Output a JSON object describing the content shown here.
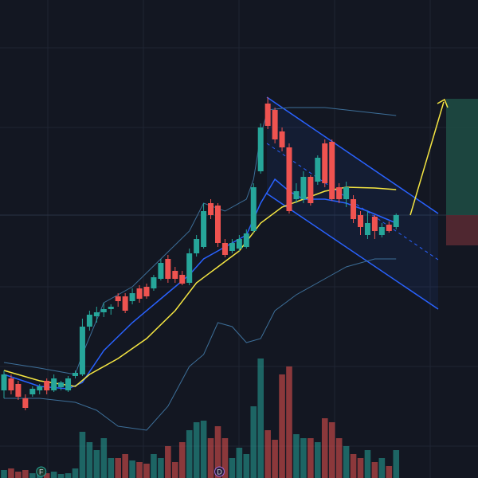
{
  "chart_data": {
    "type": "candlestick",
    "ylim": [
      0,
      600
    ],
    "y2lim": [
      0,
      600
    ],
    "up_color": "#26a69a",
    "down_color": "#ef5350",
    "open": [
      110,
      125,
      118,
      100,
      105,
      110,
      122,
      110,
      114,
      110,
      128,
      130,
      190,
      203,
      208,
      212,
      228,
      228,
      222,
      238,
      240,
      238,
      250,
      275,
      260,
      255,
      245,
      282,
      290,
      345,
      342,
      295,
      285,
      288,
      290,
      310,
      385,
      470,
      462,
      435,
      415,
      350,
      350,
      378,
      372,
      420,
      422,
      365,
      350,
      350,
      330,
      305,
      328,
      305,
      318,
      315
    ],
    "high": [
      135,
      130,
      122,
      105,
      115,
      118,
      125,
      130,
      122,
      128,
      135,
      200,
      210,
      215,
      220,
      218,
      232,
      232,
      238,
      242,
      244,
      255,
      275,
      280,
      265,
      260,
      288,
      305,
      345,
      350,
      345,
      300,
      300,
      305,
      312,
      370,
      445,
      478,
      465,
      440,
      420,
      370,
      385,
      380,
      405,
      425,
      425,
      370,
      372,
      355,
      335,
      335,
      330,
      320,
      322,
      332
    ],
    "low": [
      100,
      105,
      98,
      85,
      102,
      105,
      105,
      108,
      110,
      108,
      125,
      128,
      185,
      195,
      202,
      205,
      215,
      207,
      218,
      220,
      225,
      235,
      248,
      245,
      245,
      242,
      242,
      278,
      288,
      325,
      290,
      277,
      282,
      285,
      288,
      308,
      382,
      438,
      420,
      410,
      332,
      345,
      345,
      342,
      368,
      365,
      348,
      345,
      340,
      320,
      305,
      300,
      300,
      302,
      308,
      312
    ],
    "close": [
      130,
      110,
      102,
      88,
      112,
      115,
      110,
      125,
      120,
      125,
      132,
      190,
      205,
      208,
      212,
      215,
      222,
      210,
      232,
      225,
      228,
      252,
      270,
      250,
      250,
      244,
      282,
      300,
      335,
      330,
      295,
      280,
      295,
      300,
      307,
      365,
      440,
      442,
      425,
      415,
      335,
      360,
      378,
      345,
      402,
      370,
      350,
      350,
      365,
      325,
      315,
      320,
      310,
      315,
      310,
      330
    ],
    "volume": [
      10,
      12,
      8,
      10,
      6,
      8,
      6,
      8,
      5,
      6,
      12,
      58,
      45,
      35,
      50,
      25,
      25,
      30,
      22,
      20,
      18,
      30,
      25,
      40,
      20,
      45,
      60,
      70,
      72,
      50,
      65,
      50,
      25,
      38,
      30,
      90,
      150,
      60,
      48,
      130,
      140,
      55,
      50,
      50,
      45,
      75,
      70,
      50,
      40,
      30,
      25,
      35,
      20,
      25,
      15,
      35
    ],
    "series": [
      {
        "color": "#2962ff",
        "x": [
          0,
          5,
          9,
          11,
          14,
          18,
          22,
          26,
          28,
          31,
          34,
          36,
          38,
          40,
          42,
          45,
          48,
          51,
          55
        ],
        "values": [
          130,
          115,
          112,
          120,
          160,
          195,
          225,
          255,
          275,
          290,
          305,
          345,
          375,
          360,
          350,
          350,
          345,
          335,
          320
        ]
      },
      {
        "color": "#f5e642",
        "x": [
          0,
          5,
          10,
          12,
          16,
          20,
          24,
          27,
          30,
          33,
          36,
          39,
          42,
          45,
          48,
          52,
          55
        ],
        "values": [
          135,
          122,
          115,
          130,
          150,
          175,
          210,
          245,
          265,
          285,
          320,
          340,
          350,
          360,
          365,
          364,
          362
        ]
      },
      {
        "color": "#3d6f99",
        "x": [
          0,
          5,
          10,
          11,
          14,
          18,
          22,
          26,
          28,
          31,
          34,
          35,
          36,
          37,
          40,
          45,
          50,
          55
        ],
        "values": [
          145,
          138,
          130,
          155,
          220,
          240,
          275,
          310,
          345,
          335,
          350,
          375,
          430,
          462,
          465,
          465,
          460,
          455
        ]
      },
      {
        "color": "#3d6f99",
        "x": [
          0,
          5,
          10,
          13,
          16,
          20,
          23,
          26,
          28,
          30,
          32,
          34,
          36,
          38,
          41,
          45,
          48,
          52,
          55
        ],
        "values": [
          100,
          100,
          95,
          85,
          65,
          60,
          90,
          140,
          155,
          195,
          190,
          170,
          175,
          210,
          230,
          250,
          265,
          275,
          275
        ]
      }
    ],
    "events": [
      {
        "x": 5,
        "label": "F"
      },
      {
        "x": 30,
        "label": "D"
      }
    ]
  }
}
